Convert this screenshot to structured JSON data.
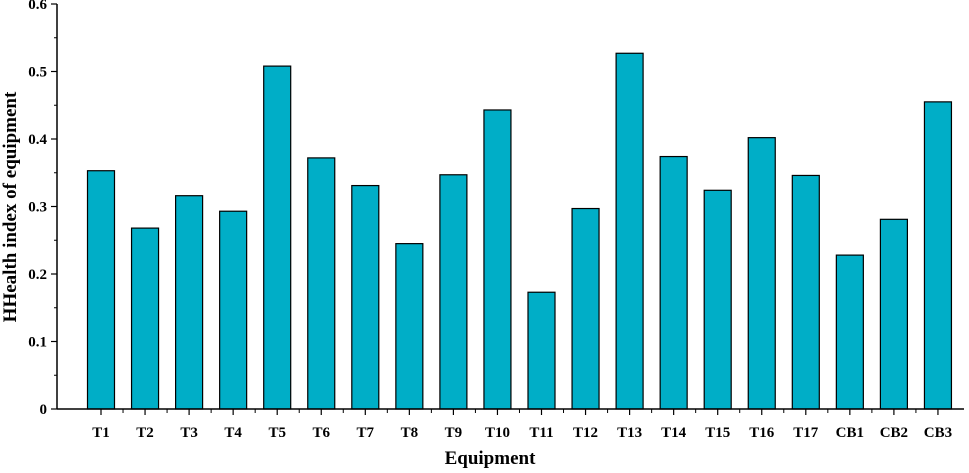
{
  "chart_data": {
    "type": "bar",
    "xlabel": "Equipment",
    "ylabel": "HHealth index of equipment",
    "ylim": [
      0,
      0.6
    ],
    "yticks": [
      "0",
      "0.1",
      "0.2",
      "0.3",
      "0.4",
      "0.5",
      "0.6"
    ],
    "grid": false,
    "categories": [
      "T1",
      "T2",
      "T3",
      "T4",
      "T5",
      "T6",
      "T7",
      "T8",
      "T9",
      "T10",
      "T11",
      "T12",
      "T13",
      "T14",
      "T15",
      "T16",
      "T17",
      "CB1",
      "CB2",
      "CB3"
    ],
    "values": [
      0.353,
      0.268,
      0.316,
      0.293,
      0.508,
      0.372,
      0.331,
      0.245,
      0.347,
      0.443,
      0.173,
      0.297,
      0.527,
      0.374,
      0.324,
      0.402,
      0.346,
      0.228,
      0.281,
      0.455
    ],
    "bar_color": "#00AEC7",
    "bar_edge_color": "#000000"
  }
}
